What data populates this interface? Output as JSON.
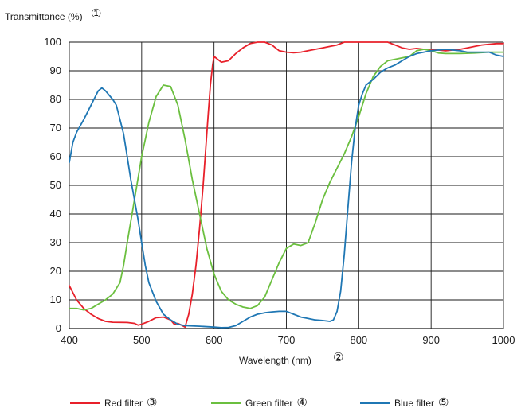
{
  "chart_data": {
    "type": "line",
    "ylabel": "Transmittance (%)",
    "ylabel_marker": "①",
    "xlabel": "Wavelength (nm)",
    "xlabel_marker": "②",
    "xlim": [
      400,
      1000
    ],
    "ylim": [
      0,
      100
    ],
    "xticks": [
      "400",
      "500",
      "600",
      "700",
      "800",
      "900",
      "1000"
    ],
    "yticks": [
      "0",
      "10",
      "20",
      "30",
      "40",
      "50",
      "60",
      "70",
      "80",
      "90",
      "100"
    ],
    "grid": true,
    "legend_position": "bottom",
    "series": [
      {
        "name": "Red filter",
        "marker": "③",
        "color": "#e8202a",
        "points": [
          [
            400,
            15
          ],
          [
            410,
            10
          ],
          [
            420,
            7
          ],
          [
            430,
            5
          ],
          [
            440,
            3.5
          ],
          [
            450,
            2.5
          ],
          [
            460,
            2.2
          ],
          [
            480,
            2.1
          ],
          [
            490,
            1.8
          ],
          [
            495,
            1.2
          ],
          [
            500,
            1.5
          ],
          [
            510,
            2.5
          ],
          [
            520,
            3.8
          ],
          [
            530,
            4
          ],
          [
            540,
            3
          ],
          [
            545,
            1.5
          ],
          [
            550,
            1.8
          ],
          [
            555,
            1.2
          ],
          [
            560,
            0.5
          ],
          [
            565,
            5
          ],
          [
            570,
            12
          ],
          [
            575,
            22
          ],
          [
            580,
            35
          ],
          [
            585,
            50
          ],
          [
            590,
            68
          ],
          [
            592,
            75
          ],
          [
            595,
            85
          ],
          [
            598,
            92
          ],
          [
            600,
            95
          ],
          [
            605,
            94
          ],
          [
            610,
            93
          ],
          [
            620,
            93.5
          ],
          [
            630,
            96
          ],
          [
            640,
            98
          ],
          [
            650,
            99.5
          ],
          [
            660,
            100
          ],
          [
            670,
            100
          ],
          [
            680,
            99
          ],
          [
            690,
            97
          ],
          [
            700,
            96.5
          ],
          [
            710,
            96.3
          ],
          [
            720,
            96.5
          ],
          [
            730,
            97
          ],
          [
            740,
            97.5
          ],
          [
            750,
            98
          ],
          [
            760,
            98.5
          ],
          [
            770,
            99
          ],
          [
            780,
            100
          ],
          [
            790,
            100
          ],
          [
            800,
            100
          ],
          [
            820,
            100
          ],
          [
            840,
            100
          ],
          [
            850,
            99
          ],
          [
            860,
            98
          ],
          [
            870,
            97.5
          ],
          [
            880,
            97.8
          ],
          [
            890,
            97.5
          ],
          [
            900,
            97.5
          ],
          [
            920,
            97
          ],
          [
            940,
            97.5
          ],
          [
            950,
            98
          ],
          [
            960,
            98.5
          ],
          [
            970,
            99
          ],
          [
            990,
            99.5
          ],
          [
            1000,
            99.5
          ]
        ]
      },
      {
        "name": "Green filter",
        "marker": "④",
        "color": "#6bbf3f",
        "points": [
          [
            400,
            7
          ],
          [
            410,
            7
          ],
          [
            420,
            6.5
          ],
          [
            430,
            7
          ],
          [
            440,
            8.5
          ],
          [
            450,
            10
          ],
          [
            460,
            12
          ],
          [
            470,
            16
          ],
          [
            475,
            22
          ],
          [
            480,
            30
          ],
          [
            490,
            45
          ],
          [
            500,
            60
          ],
          [
            510,
            72
          ],
          [
            520,
            81
          ],
          [
            530,
            85
          ],
          [
            540,
            84.5
          ],
          [
            550,
            78
          ],
          [
            560,
            66
          ],
          [
            570,
            52
          ],
          [
            580,
            40
          ],
          [
            590,
            28
          ],
          [
            600,
            19
          ],
          [
            610,
            13
          ],
          [
            620,
            10
          ],
          [
            630,
            8.5
          ],
          [
            640,
            7.5
          ],
          [
            650,
            7
          ],
          [
            660,
            8
          ],
          [
            670,
            11
          ],
          [
            680,
            17
          ],
          [
            690,
            23
          ],
          [
            700,
            28
          ],
          [
            710,
            29.5
          ],
          [
            720,
            29
          ],
          [
            730,
            30
          ],
          [
            740,
            37
          ],
          [
            750,
            45
          ],
          [
            760,
            51
          ],
          [
            770,
            56
          ],
          [
            780,
            61
          ],
          [
            790,
            67
          ],
          [
            800,
            74
          ],
          [
            810,
            82
          ],
          [
            820,
            88
          ],
          [
            830,
            91.5
          ],
          [
            840,
            93.5
          ],
          [
            850,
            94
          ],
          [
            860,
            94.5
          ],
          [
            870,
            95
          ],
          [
            880,
            97
          ],
          [
            890,
            97.5
          ],
          [
            900,
            97
          ],
          [
            910,
            96.2
          ],
          [
            920,
            96
          ],
          [
            940,
            96
          ],
          [
            960,
            96.2
          ],
          [
            980,
            96.5
          ],
          [
            1000,
            96.5
          ]
        ]
      },
      {
        "name": "Blue filter",
        "marker": "⑤",
        "color": "#1f77b4",
        "points": [
          [
            400,
            58
          ],
          [
            405,
            65
          ],
          [
            410,
            68.5
          ],
          [
            420,
            73
          ],
          [
            430,
            78
          ],
          [
            440,
            83
          ],
          [
            445,
            84
          ],
          [
            450,
            83
          ],
          [
            460,
            80
          ],
          [
            465,
            78
          ],
          [
            470,
            73
          ],
          [
            475,
            68
          ],
          [
            480,
            60
          ],
          [
            485,
            52
          ],
          [
            490,
            45
          ],
          [
            495,
            38
          ],
          [
            500,
            30
          ],
          [
            505,
            22
          ],
          [
            510,
            16
          ],
          [
            520,
            9.5
          ],
          [
            530,
            5
          ],
          [
            540,
            3
          ],
          [
            550,
            1.5
          ],
          [
            560,
            1
          ],
          [
            580,
            0.8
          ],
          [
            600,
            0.5
          ],
          [
            610,
            0.3
          ],
          [
            620,
            0.4
          ],
          [
            630,
            1
          ],
          [
            640,
            2.5
          ],
          [
            650,
            4
          ],
          [
            660,
            5
          ],
          [
            670,
            5.5
          ],
          [
            680,
            5.8
          ],
          [
            690,
            6
          ],
          [
            700,
            6
          ],
          [
            710,
            5
          ],
          [
            720,
            4
          ],
          [
            730,
            3.5
          ],
          [
            740,
            3
          ],
          [
            750,
            2.8
          ],
          [
            760,
            2.5
          ],
          [
            765,
            3
          ],
          [
            770,
            6
          ],
          [
            775,
            13
          ],
          [
            780,
            26
          ],
          [
            785,
            42
          ],
          [
            790,
            58
          ],
          [
            795,
            70
          ],
          [
            800,
            78
          ],
          [
            805,
            82
          ],
          [
            810,
            85
          ],
          [
            820,
            87
          ],
          [
            830,
            89.5
          ],
          [
            840,
            91
          ],
          [
            850,
            92
          ],
          [
            860,
            93.5
          ],
          [
            870,
            95
          ],
          [
            880,
            96
          ],
          [
            890,
            96.5
          ],
          [
            900,
            97
          ],
          [
            920,
            97.5
          ],
          [
            940,
            97
          ],
          [
            950,
            96.5
          ],
          [
            960,
            96.5
          ],
          [
            970,
            96.5
          ],
          [
            980,
            96.5
          ],
          [
            990,
            95.5
          ],
          [
            1000,
            95
          ]
        ]
      }
    ]
  }
}
